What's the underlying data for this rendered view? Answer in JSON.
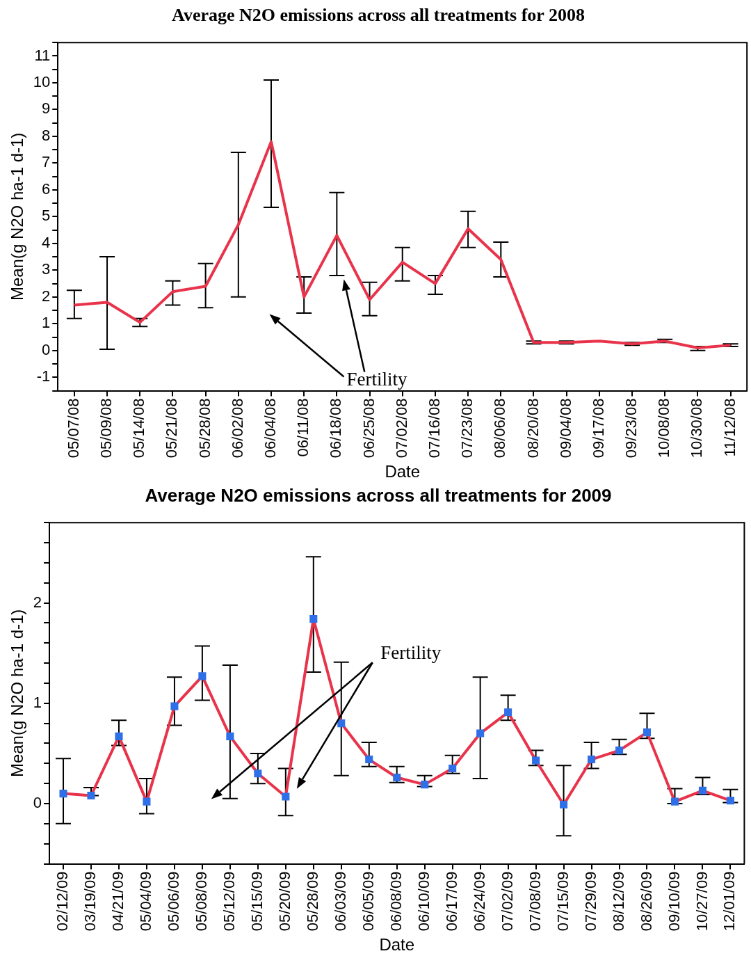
{
  "chart_data": [
    {
      "type": "line",
      "title": "Average N2O emissions across all treatments for 2008",
      "xlabel": "Date",
      "ylabel": "Mean(g N2O ha-1 d-1)",
      "categories": [
        "05/07/08",
        "05/09/08",
        "05/14/08",
        "05/21/08",
        "05/28/08",
        "06/02/08",
        "06/04/08",
        "06/11/08",
        "06/18/08",
        "06/25/08",
        "07/02/08",
        "07/16/08",
        "07/23/08",
        "08/06/08",
        "08/20/08",
        "09/04/08",
        "09/17/08",
        "09/23/08",
        "10/08/08",
        "10/30/08",
        "11/12/08"
      ],
      "series": [
        {
          "color": "#e8334a",
          "values": [
            1.7,
            1.8,
            1.05,
            2.2,
            2.4,
            4.7,
            7.8,
            2.0,
            4.3,
            1.9,
            3.3,
            2.5,
            4.55,
            3.4,
            0.3,
            0.3,
            0.35,
            0.25,
            0.35,
            0.1,
            0.2
          ],
          "errors": [
            [
              1.2,
              2.25
            ],
            [
              0.05,
              3.5
            ],
            [
              0.9,
              1.2
            ],
            [
              1.7,
              2.6
            ],
            [
              1.6,
              3.25
            ],
            [
              2.0,
              7.4
            ],
            [
              5.35,
              10.1
            ],
            [
              1.4,
              2.75
            ],
            [
              2.8,
              5.9
            ],
            [
              1.3,
              2.55
            ],
            [
              2.6,
              3.85
            ],
            [
              2.1,
              2.8
            ],
            [
              3.85,
              5.2
            ],
            [
              2.75,
              4.05
            ],
            [
              0.25,
              0.35
            ],
            [
              0.25,
              0.35
            ],
            null,
            [
              0.2,
              0.3
            ],
            [
              0.3,
              0.42
            ],
            [
              0.0,
              0.15
            ],
            [
              0.15,
              0.25
            ]
          ]
        }
      ],
      "ylim": [
        -1.5,
        11.5
      ],
      "yticks": [
        {
          "value": -1.5,
          "label": null
        },
        -1,
        {
          "value": -0.5,
          "label": null
        },
        0,
        {
          "value": 0.5,
          "label": null
        },
        1,
        {
          "value": 1.5,
          "label": null
        },
        2,
        {
          "value": 2.5,
          "label": null
        },
        3,
        {
          "value": 3.5,
          "label": null
        },
        4,
        {
          "value": 4.5,
          "label": null
        },
        5,
        {
          "value": 5.5,
          "label": null
        },
        6,
        {
          "value": 6.5,
          "label": null
        },
        7,
        {
          "value": 7.5,
          "label": null
        },
        8,
        {
          "value": 8.5,
          "label": null
        },
        9,
        {
          "value": 9.5,
          "label": null
        },
        10,
        {
          "value": 10.5,
          "label": null
        },
        11,
        {
          "value": 11.5,
          "label": null
        }
      ],
      "annotations": [
        "Fertility"
      ],
      "grid": false,
      "legend": false,
      "marker": "none"
    },
    {
      "type": "line",
      "title": "Average N2O emissions across all treatments for 2009",
      "xlabel": "Date",
      "ylabel": "Mean(g N2O ha-1 d-1)",
      "categories": [
        "02/12/09",
        "03/19/09",
        "04/21/09",
        "05/04/09",
        "05/06/09",
        "05/08/09",
        "05/12/09",
        "05/15/09",
        "05/20/09",
        "05/28/09",
        "06/03/09",
        "06/05/09",
        "06/08/09",
        "06/10/09",
        "06/17/09",
        "06/24/09",
        "07/02/09",
        "07/08/09",
        "07/15/09",
        "07/29/09",
        "08/12/09",
        "08/26/09",
        "09/10/09",
        "10/27/09",
        "12/01/09"
      ],
      "series": [
        {
          "color": "#e8334a",
          "colors": [
            "#2f6fe8",
            "#2f6fe8",
            "#2f6fe8",
            "#2f6fe8",
            "#2f6fe8",
            "#2f6fe8",
            "#2f6fe8",
            "#2f6fe8",
            "#2f6fe8",
            "#2f6fe8",
            "#2f6fe8",
            "#2f6fe8",
            "#2f6fe8",
            "#2f6fe8",
            "#2f6fe8",
            "#2f6fe8",
            "#2f6fe8",
            "#2f6fe8",
            "#2f6fe8",
            "#2f6fe8",
            "#2f6fe8",
            "#2f6fe8",
            "#2f6fe8",
            "#2f6fe8",
            "#2f6fe8"
          ],
          "values": [
            0.1,
            0.08,
            0.67,
            0.02,
            0.97,
            1.27,
            0.67,
            0.3,
            0.07,
            1.84,
            0.8,
            0.44,
            0.26,
            0.19,
            0.35,
            0.7,
            0.91,
            0.43,
            -0.01,
            0.44,
            0.53,
            0.71,
            0.02,
            0.13,
            0.03
          ],
          "errors": [
            [
              -0.2,
              0.45
            ],
            [
              0.08,
              0.16
            ],
            [
              0.58,
              0.83
            ],
            [
              -0.1,
              0.25
            ],
            [
              0.78,
              1.26
            ],
            [
              1.03,
              1.57
            ],
            [
              0.05,
              1.38
            ],
            [
              0.2,
              0.5
            ],
            [
              -0.12,
              0.35
            ],
            [
              1.31,
              2.46
            ],
            [
              0.28,
              1.41
            ],
            [
              0.37,
              0.61
            ],
            [
              0.21,
              0.37
            ],
            [
              0.17,
              0.28
            ],
            [
              0.3,
              0.48
            ],
            [
              0.25,
              1.26
            ],
            [
              0.83,
              1.08
            ],
            [
              0.38,
              0.53
            ],
            [
              -0.32,
              0.38
            ],
            [
              0.35,
              0.61
            ],
            [
              0.49,
              0.64
            ],
            [
              0.65,
              0.9
            ],
            [
              0.0,
              0.15
            ],
            [
              0.09,
              0.26
            ],
            [
              0.01,
              0.14
            ]
          ]
        }
      ],
      "ylim": [
        -0.6,
        2.8
      ],
      "yticks": [
        {
          "value": -0.6,
          "label": null
        },
        {
          "value": -0.4,
          "label": null
        },
        {
          "value": -0.2,
          "label": null
        },
        0,
        {
          "value": 0.2,
          "label": null
        },
        {
          "value": 0.4,
          "label": null
        },
        {
          "value": 0.6,
          "label": null
        },
        {
          "value": 0.8,
          "label": null
        },
        1,
        {
          "value": 1.2,
          "label": null
        },
        {
          "value": 1.4,
          "label": null
        },
        {
          "value": 1.6,
          "label": null
        },
        {
          "value": 1.8,
          "label": null
        },
        2,
        {
          "value": 2.2,
          "label": null
        },
        {
          "value": 2.4,
          "label": null
        },
        {
          "value": 2.6,
          "label": null
        },
        {
          "value": 2.8,
          "label": null
        }
      ],
      "annotations": [
        "Fertility"
      ],
      "grid": false,
      "legend": false,
      "marker": "square"
    }
  ]
}
